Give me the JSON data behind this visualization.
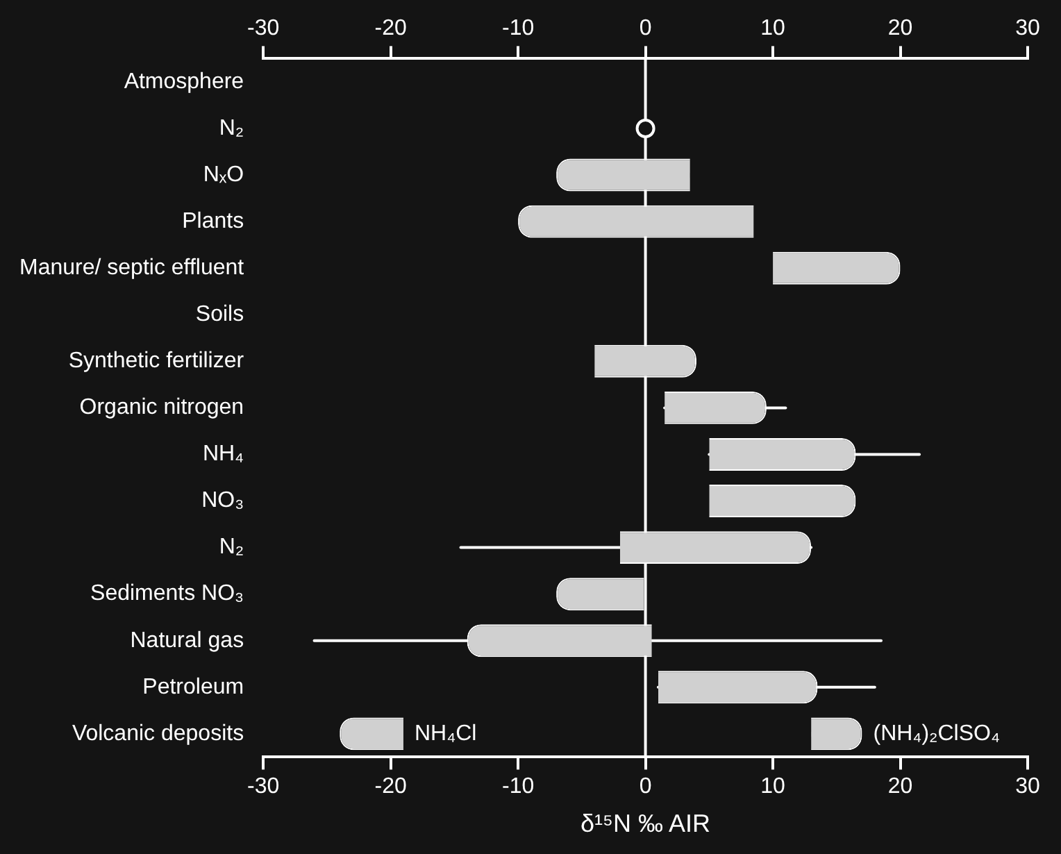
{
  "chart_data": {
    "type": "bar",
    "orientation": "horizontal",
    "xlabel": "δ¹⁵N ‰ AIR",
    "categories": [
      "Atmosphere",
      "N₂",
      "NₓO",
      "Plants",
      "Manure/ septic effluent",
      "Soils",
      "Synthetic fertilizer",
      "Organic nitrogen",
      "NH₄",
      "NO₃",
      "N₂",
      "Sediments NO₃",
      "Natural gas",
      "Petroleum",
      "Volcanic deposits"
    ],
    "series": [
      {
        "color": "#d0d0d0",
        "values": [
          null,
          null,
          10.5,
          18.5,
          10,
          null,
          8,
          8,
          11.5,
          11.5,
          15,
          7,
          14.5,
          12.5,
          null
        ],
        "base": [
          null,
          null,
          -7,
          -10,
          10,
          null,
          -4,
          1.5,
          5,
          5,
          -2,
          -7,
          -14,
          1,
          null
        ],
        "errors": [
          null,
          null,
          null,
          null,
          null,
          null,
          null,
          [
            1.5,
            11
          ],
          [
            5,
            21.5
          ],
          null,
          [
            -14.5,
            13
          ],
          null,
          [
            -26,
            18.5
          ],
          [
            1,
            18
          ],
          null
        ]
      },
      {
        "name": "NH₄Cl",
        "color": "#d0d0d0",
        "values": [
          null,
          null,
          null,
          null,
          null,
          null,
          null,
          null,
          null,
          null,
          null,
          null,
          null,
          null,
          5
        ],
        "base": [
          null,
          null,
          null,
          null,
          null,
          null,
          null,
          null,
          null,
          null,
          null,
          null,
          null,
          null,
          -24
        ]
      },
      {
        "name": "(NH₄)₂ClSO₄",
        "color": "#d0d0d0",
        "values": [
          null,
          null,
          null,
          null,
          null,
          null,
          null,
          null,
          null,
          null,
          null,
          null,
          null,
          null,
          4
        ],
        "base": [
          null,
          null,
          null,
          null,
          null,
          null,
          null,
          null,
          null,
          null,
          null,
          null,
          null,
          null,
          13
        ]
      },
      {
        "type": "scatter",
        "color": "#ffffff",
        "marker": "circle",
        "values": [
          null,
          0,
          null,
          null,
          null,
          null,
          null,
          null,
          null,
          null,
          null,
          null,
          null,
          null,
          null
        ]
      }
    ],
    "xlim": [
      -30,
      30
    ],
    "xticks": [
      -30,
      -20,
      -10,
      0,
      10,
      20,
      30
    ],
    "x2lim": [
      -30,
      30
    ],
    "x2ticks": [
      -30,
      -20,
      -10,
      0,
      10,
      20,
      30
    ],
    "ref_lines": [
      {
        "axis": "x",
        "value": 0,
        "color": "#ffffff"
      }
    ],
    "grid": false
  }
}
